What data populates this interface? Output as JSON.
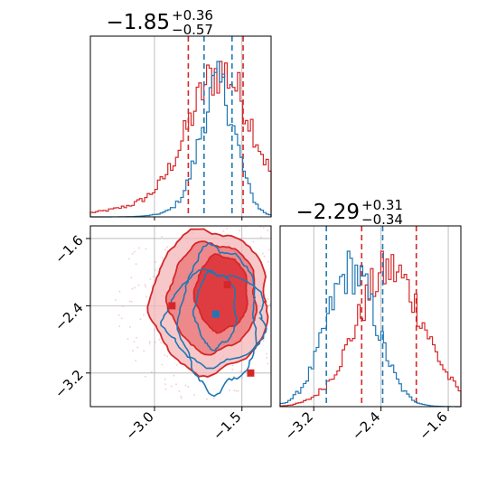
{
  "chart_data": {
    "type": "corner",
    "colors": {
      "red": "#d62728",
      "blue": "#1f77b4",
      "grid": "#b0b0b0"
    },
    "panels": [
      {
        "id": "hist-param1",
        "type": "histogram",
        "title": {
          "median": "−1.85",
          "plus": "+0.36",
          "minus": "−0.57"
        },
        "xlim": [
          -4.1,
          -1.0
        ],
        "grid_x": [
          -3.0,
          -1.5
        ],
        "series": [
          {
            "color": "red",
            "quantiles": [
              -2.42,
              -1.48
            ],
            "peak": -1.85,
            "width": 0.55,
            "tail_left": -4.0,
            "tail_right": -1.1
          },
          {
            "color": "blue",
            "quantiles": [
              -2.15,
              -1.67
            ],
            "peak": -1.9,
            "width": 0.3,
            "tail_left": -2.5,
            "tail_right": -1.4
          }
        ]
      },
      {
        "id": "hist-param2",
        "type": "histogram",
        "title": {
          "median": "−2.29",
          "plus": "+0.31",
          "minus": "−0.34"
        },
        "xlim": [
          -3.6,
          -1.45
        ],
        "grid_x": [
          -3.2,
          -2.4,
          -1.6
        ],
        "x_ticks": [
          {
            "value": -3.2,
            "label": "−3.2"
          },
          {
            "value": -2.4,
            "label": "−2.4"
          },
          {
            "value": -1.6,
            "label": "−1.6"
          }
        ],
        "series": [
          {
            "color": "red",
            "quantiles": [
              -2.63,
              -1.98
            ],
            "peak": -2.29,
            "width": 0.4
          },
          {
            "color": "blue",
            "quantiles": [
              -3.05,
              -2.38
            ],
            "peak": -2.75,
            "width": 0.3
          }
        ]
      },
      {
        "id": "contour-2d",
        "type": "contour",
        "xlim": [
          -4.1,
          -1.0
        ],
        "ylim": [
          -3.6,
          -1.45
        ],
        "x_ticks": [
          {
            "value": -3.0,
            "label": "−3.0"
          },
          {
            "value": -1.5,
            "label": "−1.5"
          }
        ],
        "y_ticks": [
          {
            "value": -1.6,
            "label": "−1.6"
          },
          {
            "value": -2.4,
            "label": "−2.4"
          },
          {
            "value": -3.2,
            "label": "−3.2"
          }
        ],
        "red_contours": [
          {
            "cx": -2.05,
            "cy": -2.35,
            "rx": 1.0,
            "ry": 0.85
          },
          {
            "cx": -2.0,
            "cy": -2.3,
            "rx": 0.75,
            "ry": 0.65
          },
          {
            "cx": -1.85,
            "cy": -2.25,
            "rx": 0.45,
            "ry": 0.45
          }
        ],
        "blue_contours": [
          {
            "cx": -1.95,
            "cy": -2.55,
            "rx": 0.85,
            "ry": 0.55
          },
          {
            "cx": -1.9,
            "cy": -2.55,
            "rx": 0.65,
            "ry": 0.85
          },
          {
            "cx": -1.95,
            "cy": -2.45,
            "rx": 0.35,
            "ry": 0.45
          }
        ],
        "markers": [
          {
            "color": "red",
            "x": -2.7,
            "y": -2.4
          },
          {
            "color": "red",
            "x": -1.75,
            "y": -2.15
          },
          {
            "color": "red",
            "x": -1.35,
            "y": -3.2
          },
          {
            "color": "blue",
            "x": -1.95,
            "y": -2.5
          }
        ]
      }
    ]
  }
}
